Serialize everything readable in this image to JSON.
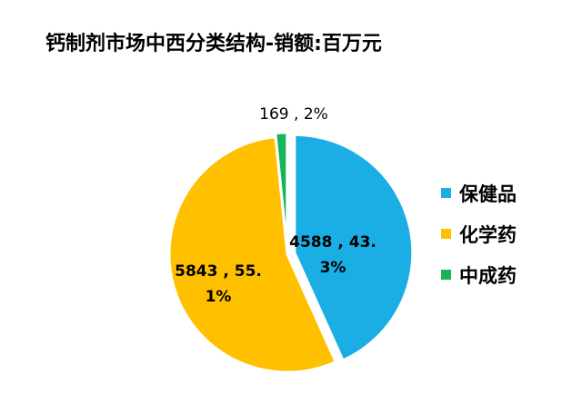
{
  "chart_data": {
    "type": "pie",
    "title": "钙制剂市场中西分类结构-销额:百万元",
    "categories": [
      "保健品",
      "化学药",
      "中成药"
    ],
    "values": [
      4588,
      5843,
      169
    ],
    "percents": [
      "43.3%",
      "55.1%",
      "2%"
    ],
    "colors": [
      "#1aaee5",
      "#ffc000",
      "#19b35a"
    ],
    "data_labels": [
      {
        "lines": [
          "4588 , 43.",
          "3%"
        ],
        "bold": true
      },
      {
        "lines": [
          "5843 , 55.",
          "1%"
        ],
        "bold": true
      },
      {
        "lines": [
          "169 , 2%"
        ],
        "bold": false
      }
    ],
    "legend": {
      "position": "right",
      "entries": [
        "保健品",
        "化学药",
        "中成药"
      ]
    },
    "exploded": true,
    "start_angle": "top, clockwise"
  }
}
